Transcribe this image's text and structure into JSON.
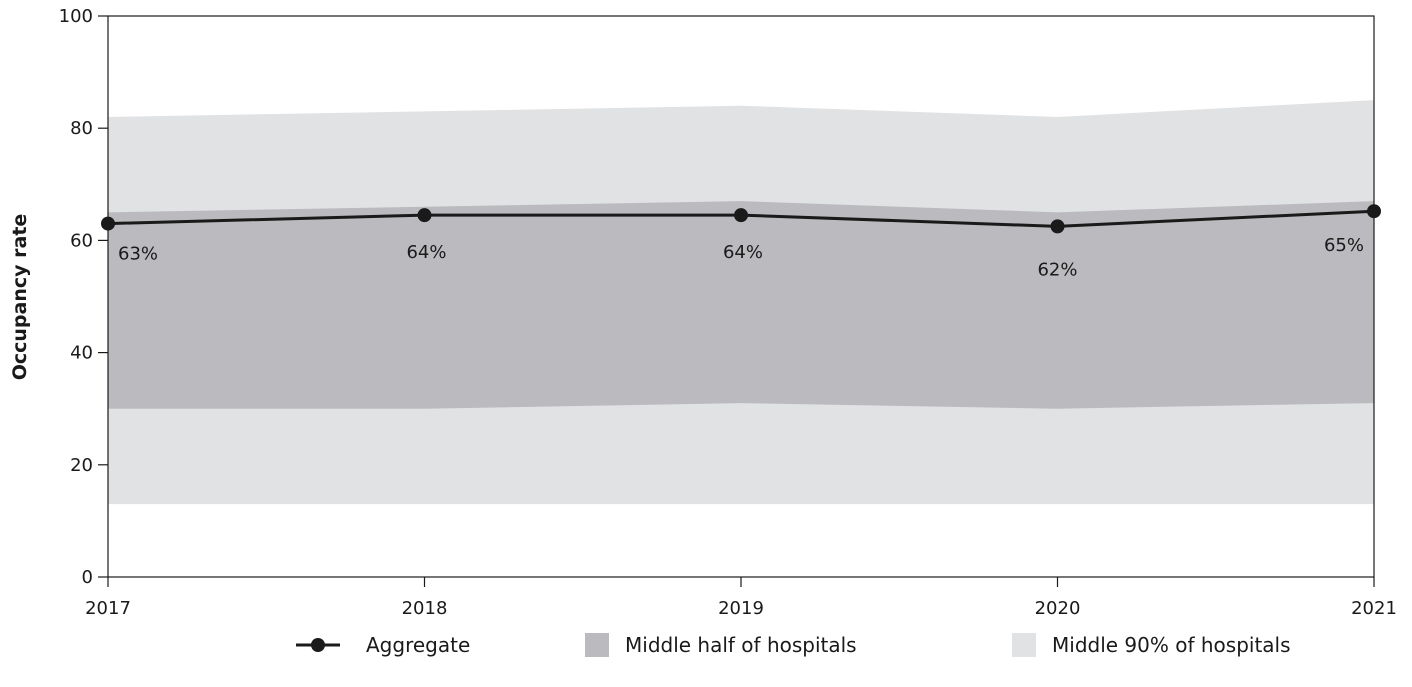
{
  "chart_data": {
    "type": "area",
    "x": [
      "2017",
      "2018",
      "2019",
      "2020",
      "2021"
    ],
    "ylabel": "Occupancy rate",
    "xlabel": "",
    "ylim": [
      0,
      100
    ],
    "yticks": [
      0,
      20,
      40,
      60,
      80,
      100
    ],
    "grid": false,
    "legend_position": "bottom",
    "series": [
      {
        "name": "Aggregate",
        "kind": "line",
        "values": [
          63,
          64.5,
          64.5,
          62.5,
          65.2
        ],
        "labels": [
          "63%",
          "64%",
          "64%",
          "62%",
          "65%"
        ],
        "color": "#1a1a1a"
      },
      {
        "name": "Middle half of hospitals",
        "kind": "band",
        "lower": [
          30,
          30,
          31,
          30,
          31
        ],
        "upper": [
          65,
          66,
          67,
          65,
          67
        ],
        "color": "#bbbbbf"
      },
      {
        "name": "Middle 90% of hospitals",
        "kind": "band",
        "lower": [
          13,
          13,
          13,
          13,
          13
        ],
        "upper": [
          82,
          83,
          84,
          82,
          85
        ],
        "color": "#e1e2e4"
      }
    ]
  }
}
